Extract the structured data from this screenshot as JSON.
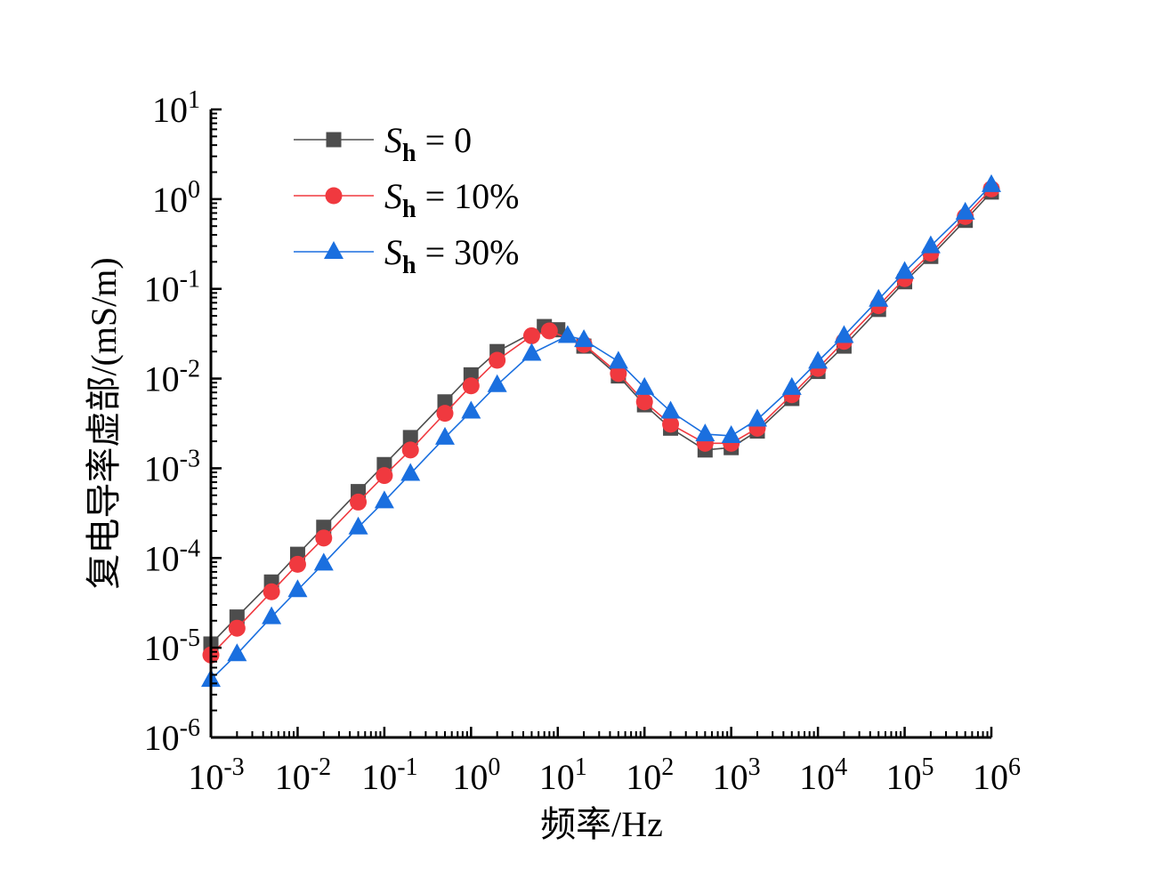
{
  "chart_data": {
    "type": "line",
    "title": "",
    "xlabel": "频率/Hz",
    "ylabel": "复电导率虚部/(mS/m)",
    "xscale": "log",
    "yscale": "log",
    "xlim": [
      0.001,
      1000000
    ],
    "ylim": [
      1e-06,
      10
    ],
    "x_tick_exponents": [
      -3,
      -2,
      -1,
      0,
      1,
      2,
      3,
      4,
      5,
      6
    ],
    "y_tick_exponents": [
      1,
      0,
      -1,
      -2,
      -3,
      -4,
      -5,
      -6
    ],
    "tick_base": "10",
    "legend_position": "top-left",
    "series": [
      {
        "name": "Sh = 0",
        "legend": {
          "symbol": "S",
          "sub": "h",
          "rest": " = 0"
        },
        "color": "#4d4d4d",
        "marker": "square",
        "x": [
          0.001,
          0.002,
          0.005,
          0.01,
          0.02,
          0.05,
          0.1,
          0.2,
          0.5,
          1,
          2,
          7,
          10,
          20,
          50,
          100,
          200,
          500,
          1000,
          2000,
          5000,
          10000,
          20000,
          50000,
          100000,
          200000,
          500000,
          1000000
        ],
        "y": [
          1.1e-05,
          2.2e-05,
          5.4e-05,
          0.00011,
          0.00022,
          0.00055,
          0.0011,
          0.0022,
          0.0055,
          0.011,
          0.02,
          0.038,
          0.035,
          0.023,
          0.0107,
          0.0051,
          0.0028,
          0.0016,
          0.0017,
          0.0026,
          0.006,
          0.012,
          0.023,
          0.059,
          0.12,
          0.23,
          0.58,
          1.2
        ]
      },
      {
        "name": "Sh = 10%",
        "legend": {
          "symbol": "S",
          "sub": "h",
          "rest": " = 10%"
        },
        "color": "#f0393f",
        "marker": "circle",
        "x": [
          0.001,
          0.002,
          0.005,
          0.01,
          0.02,
          0.05,
          0.1,
          0.2,
          0.5,
          1,
          2,
          5,
          8,
          20,
          50,
          100,
          200,
          500,
          1000,
          2000,
          5000,
          10000,
          20000,
          50000,
          100000,
          200000,
          500000,
          1000000
        ],
        "y": [
          8.3e-06,
          1.65e-05,
          4.2e-05,
          8.5e-05,
          0.000167,
          0.00042,
          0.00083,
          0.0016,
          0.0041,
          0.0083,
          0.016,
          0.03,
          0.034,
          0.024,
          0.0114,
          0.0055,
          0.0031,
          0.0019,
          0.0019,
          0.0028,
          0.0066,
          0.013,
          0.026,
          0.065,
          0.13,
          0.25,
          0.64,
          1.3
        ]
      },
      {
        "name": "Sh = 30%",
        "legend": {
          "symbol": "S",
          "sub": "h",
          "rest": " = 30%"
        },
        "color": "#1a6fdf",
        "marker": "triangle",
        "x": [
          0.001,
          0.002,
          0.005,
          0.01,
          0.02,
          0.05,
          0.1,
          0.2,
          0.5,
          1,
          2,
          5,
          13,
          20,
          50,
          100,
          200,
          500,
          1000,
          2000,
          5000,
          10000,
          20000,
          50000,
          100000,
          200000,
          500000,
          1000000
        ],
        "y": [
          4.4e-06,
          8.5e-06,
          2.2e-05,
          4.4e-05,
          8.7e-05,
          0.00022,
          0.00043,
          0.00087,
          0.0022,
          0.0043,
          0.0085,
          0.019,
          0.03,
          0.027,
          0.0155,
          0.0079,
          0.0043,
          0.0024,
          0.0023,
          0.0035,
          0.0079,
          0.0155,
          0.03,
          0.076,
          0.155,
          0.3,
          0.71,
          1.44
        ]
      }
    ]
  }
}
